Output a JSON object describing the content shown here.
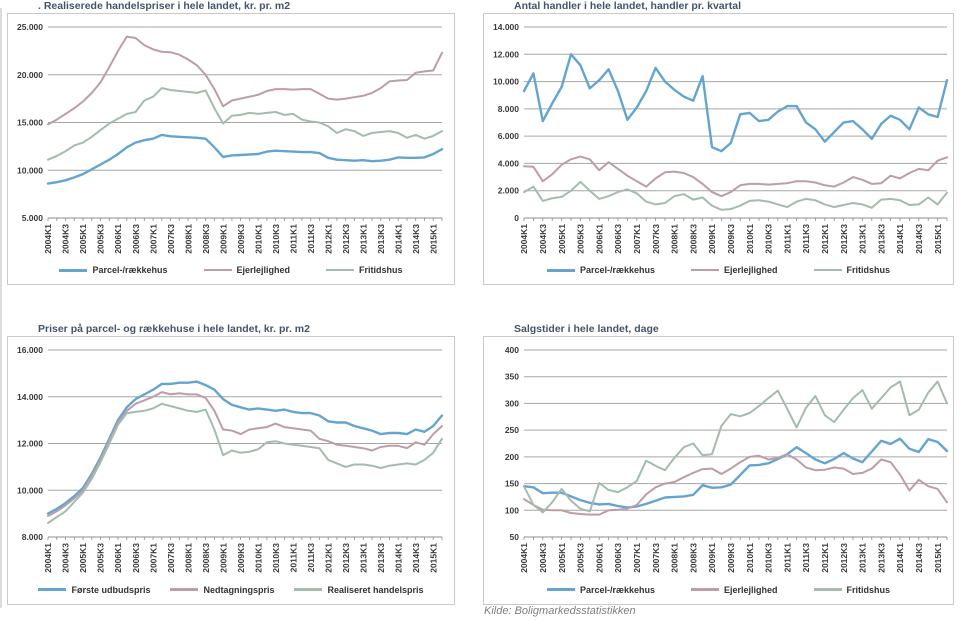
{
  "page": {
    "source_note": "Kilde: Boligmarkedsstatistikken"
  },
  "colors": {
    "blue": "#64a5d0",
    "pink": "#bc9da8",
    "green": "#a3bcac",
    "grid": "#a6a6a6",
    "axis": "#8c8c8c",
    "title": "#44546a",
    "tick_text": "#3a3a3a",
    "legend_text": "#333333",
    "panel_border": "#c9c9c9",
    "source_text": "#7f7f7f"
  },
  "x_axis": {
    "label_step": 2,
    "categories": [
      "2004K1",
      "2004K2",
      "2004K3",
      "2004K4",
      "2005K1",
      "2005K2",
      "2005K3",
      "2005K4",
      "2006K1",
      "2006K2",
      "2006K3",
      "2006K4",
      "2007K1",
      "2007K2",
      "2007K3",
      "2007K4",
      "2008K1",
      "2008K2",
      "2008K3",
      "2008K4",
      "2009K1",
      "2009K2",
      "2009K3",
      "2009K4",
      "2010K1",
      "2010K2",
      "2010K3",
      "2010K4",
      "2011K1",
      "2011K2",
      "2011K3",
      "2011K4",
      "2012K1",
      "2012K2",
      "2012K3",
      "2012K4",
      "2013K1",
      "2013K2",
      "2013K3",
      "2013K4",
      "2014K1",
      "2014K2",
      "2014K3",
      "2014K4",
      "2015K1",
      "2015K2"
    ]
  },
  "chart_data": [
    {
      "type": "line",
      "title": ". Realiserede handelspriser i hele landet, kr. pr. m2",
      "ylim": [
        5000,
        25000
      ],
      "y_ticks": [
        "25.000",
        "20.000",
        "15.000",
        "10.000",
        "5.000"
      ],
      "grid": true,
      "legend_position": "bottom",
      "series": [
        {
          "name": "Parcel-/rækkehus",
          "color_key": "blue",
          "values": [
            8600,
            8750,
            8950,
            9250,
            9600,
            10100,
            10600,
            11100,
            11700,
            12400,
            12900,
            13150,
            13300,
            13700,
            13550,
            13500,
            13450,
            13400,
            13300,
            12400,
            11400,
            11550,
            11600,
            11650,
            11700,
            11950,
            12050,
            12000,
            11950,
            11900,
            11900,
            11800,
            11300,
            11100,
            11050,
            11000,
            11050,
            10950,
            11000,
            11100,
            11350,
            11300,
            11300,
            11350,
            11700,
            12200
          ]
        },
        {
          "name": "Ejerlejlighed",
          "color_key": "pink",
          "values": [
            14800,
            15300,
            15900,
            16500,
            17200,
            18100,
            19200,
            20800,
            22500,
            24000,
            23850,
            23100,
            22650,
            22400,
            22350,
            22100,
            21600,
            21000,
            20000,
            18500,
            16700,
            17300,
            17500,
            17700,
            17900,
            18300,
            18500,
            18500,
            18450,
            18500,
            18500,
            18000,
            17500,
            17400,
            17500,
            17650,
            17800,
            18100,
            18600,
            19300,
            19400,
            19450,
            20200,
            20350,
            20450,
            22300
          ]
        },
        {
          "name": "Fritidshus",
          "color_key": "green",
          "values": [
            11100,
            11500,
            12000,
            12600,
            12900,
            13500,
            14200,
            14900,
            15400,
            15900,
            16100,
            17300,
            17700,
            18600,
            18400,
            18300,
            18200,
            18100,
            18350,
            16500,
            14900,
            15700,
            15800,
            16000,
            15900,
            16000,
            16100,
            15800,
            15900,
            15300,
            15100,
            15000,
            14600,
            13900,
            14300,
            14100,
            13600,
            13900,
            14000,
            14100,
            13900,
            13400,
            13700,
            13300,
            13600,
            14100
          ]
        }
      ]
    },
    {
      "type": "line",
      "title": "Antal handler i hele landet, handler pr. kvartal",
      "ylim": [
        0,
        14000
      ],
      "y_ticks": [
        "14.000",
        "12.000",
        "10.000",
        "8.000",
        "6.000",
        "4.000",
        "2.000",
        "0"
      ],
      "grid": true,
      "legend_position": "bottom",
      "series": [
        {
          "name": "Parcel-/rækkehus",
          "color_key": "blue",
          "values": [
            9300,
            10600,
            7100,
            8400,
            9600,
            12000,
            11200,
            9500,
            10100,
            10900,
            9300,
            7200,
            8100,
            9300,
            11000,
            10000,
            9400,
            8900,
            8600,
            10400,
            5200,
            4900,
            5500,
            7600,
            7700,
            7100,
            7200,
            7800,
            8200,
            8200,
            7000,
            6500,
            5600,
            6300,
            7000,
            7100,
            6500,
            5800,
            6900,
            7500,
            7200,
            6500,
            8100,
            7600,
            7400,
            10100
          ]
        },
        {
          "name": "Ejerlejlighed",
          "color_key": "pink",
          "values": [
            3800,
            3750,
            2700,
            3200,
            3900,
            4300,
            4500,
            4300,
            3500,
            4100,
            3600,
            3100,
            2700,
            2300,
            2900,
            3350,
            3400,
            3300,
            3000,
            2500,
            1900,
            1600,
            1900,
            2400,
            2500,
            2500,
            2450,
            2500,
            2550,
            2700,
            2700,
            2600,
            2400,
            2300,
            2600,
            3000,
            2800,
            2500,
            2550,
            3100,
            2900,
            3300,
            3600,
            3500,
            4200,
            4450
          ]
        },
        {
          "name": "Fritidshus",
          "color_key": "green",
          "values": [
            1900,
            2300,
            1250,
            1450,
            1550,
            2000,
            2650,
            2000,
            1400,
            1600,
            1900,
            2100,
            1800,
            1200,
            1000,
            1100,
            1600,
            1750,
            1350,
            1500,
            900,
            600,
            650,
            900,
            1250,
            1300,
            1200,
            1000,
            800,
            1200,
            1400,
            1300,
            1000,
            800,
            950,
            1100,
            1000,
            750,
            1350,
            1400,
            1300,
            950,
            1000,
            1500,
            1000,
            1850
          ]
        }
      ]
    },
    {
      "type": "line",
      "title": "Priser på parcel- og rækkehuse i hele landet, kr. pr. m2",
      "ylim": [
        8000,
        16000
      ],
      "y_ticks": [
        "16.000",
        "14.000",
        "12.000",
        "10.000",
        "8.000"
      ],
      "grid": true,
      "legend_position": "bottom",
      "series": [
        {
          "name": "Første udbudspris",
          "color_key": "blue",
          "values": [
            9000,
            9200,
            9450,
            9750,
            10100,
            10700,
            11400,
            12200,
            13000,
            13550,
            13900,
            14100,
            14300,
            14550,
            14550,
            14600,
            14600,
            14650,
            14500,
            14300,
            13900,
            13650,
            13550,
            13450,
            13500,
            13450,
            13400,
            13450,
            13350,
            13300,
            13300,
            13200,
            12950,
            12900,
            12900,
            12750,
            12650,
            12550,
            12400,
            12450,
            12450,
            12400,
            12600,
            12500,
            12750,
            13200
          ]
        },
        {
          "name": "Nedtagningspris",
          "color_key": "pink",
          "values": [
            8900,
            9100,
            9350,
            9650,
            10000,
            10600,
            11300,
            12100,
            12900,
            13400,
            13700,
            13850,
            14000,
            14200,
            14100,
            14150,
            14100,
            14100,
            13950,
            13400,
            12600,
            12550,
            12400,
            12600,
            12650,
            12700,
            12850,
            12700,
            12650,
            12600,
            12550,
            12200,
            12100,
            11950,
            11900,
            11850,
            11800,
            11700,
            11850,
            11900,
            11900,
            11800,
            12050,
            11950,
            12400,
            12750
          ]
        },
        {
          "name": "Realiseret handelspris",
          "color_key": "green",
          "values": [
            8600,
            8850,
            9100,
            9500,
            9900,
            10500,
            11200,
            12000,
            12800,
            13300,
            13350,
            13400,
            13500,
            13700,
            13600,
            13500,
            13400,
            13350,
            13450,
            12600,
            11500,
            11700,
            11600,
            11650,
            11750,
            12050,
            12100,
            12000,
            11950,
            11900,
            11850,
            11800,
            11300,
            11150,
            11000,
            11100,
            11100,
            11050,
            10950,
            11050,
            11100,
            11150,
            11100,
            11300,
            11600,
            12200
          ]
        }
      ]
    },
    {
      "type": "line",
      "title": "Salgstider i hele landet, dage",
      "ylim": [
        50,
        400
      ],
      "y_ticks": [
        "400",
        "350",
        "300",
        "250",
        "200",
        "150",
        "100",
        "50"
      ],
      "grid": true,
      "legend_position": "bottom",
      "series": [
        {
          "name": "Parcel-/rækkehus",
          "color_key": "blue",
          "values": [
            145,
            143,
            132,
            133,
            133,
            126,
            119,
            114,
            111,
            112,
            108,
            105,
            107,
            112,
            118,
            124,
            125,
            126,
            129,
            147,
            142,
            143,
            148,
            166,
            184,
            185,
            188,
            196,
            205,
            218,
            207,
            195,
            188,
            196,
            207,
            197,
            190,
            210,
            230,
            224,
            234,
            215,
            209,
            233,
            228,
            211
          ]
        },
        {
          "name": "Ejerlejlighed",
          "color_key": "pink",
          "values": [
            121,
            110,
            101,
            100,
            100,
            95,
            93,
            92,
            92,
            100,
            101,
            103,
            110,
            130,
            143,
            150,
            153,
            162,
            170,
            177,
            178,
            168,
            178,
            190,
            200,
            202,
            195,
            198,
            205,
            195,
            180,
            175,
            176,
            180,
            178,
            168,
            170,
            178,
            195,
            190,
            167,
            137,
            157,
            145,
            140,
            115
          ]
        },
        {
          "name": "Fritidshus",
          "color_key": "green",
          "values": [
            145,
            110,
            96,
            115,
            140,
            118,
            103,
            98,
            151,
            138,
            134,
            143,
            155,
            193,
            183,
            175,
            198,
            218,
            225,
            203,
            205,
            258,
            280,
            276,
            282,
            295,
            310,
            324,
            290,
            255,
            292,
            314,
            278,
            265,
            288,
            310,
            325,
            290,
            310,
            330,
            341,
            278,
            288,
            320,
            341,
            300
          ]
        }
      ]
    }
  ]
}
